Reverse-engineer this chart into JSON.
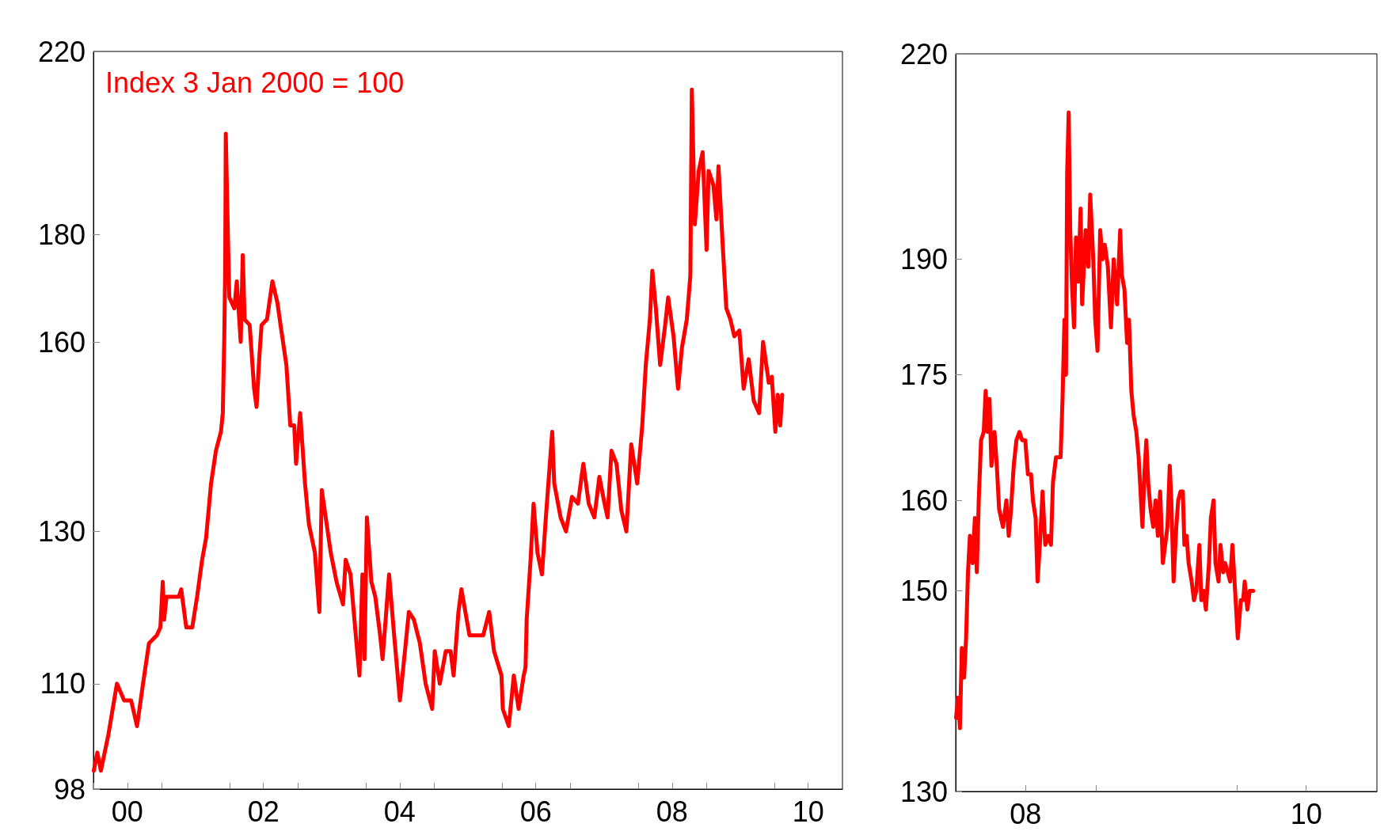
{
  "chart_data": [
    {
      "type": "line",
      "subtitle": "Index 3 Jan 2000 = 100",
      "log": true,
      "xlim": [
        "2000-01-01",
        "2011-01-01"
      ],
      "xticks": [
        {
          "value": "2000-01-01",
          "label": null
        },
        {
          "value": "2000-07-01",
          "label": "00"
        },
        {
          "value": "2001-01-01",
          "label": null
        },
        {
          "value": "2002-01-01",
          "label": null
        },
        {
          "value": "2002-07-01",
          "label": "02"
        },
        {
          "value": "2003-01-01",
          "label": null
        },
        {
          "value": "2004-01-01",
          "label": null
        },
        {
          "value": "2004-07-01",
          "label": "04"
        },
        {
          "value": "2005-01-01",
          "label": null
        },
        {
          "value": "2006-01-01",
          "label": null
        },
        {
          "value": "2006-07-01",
          "label": "06"
        },
        {
          "value": "2007-01-01",
          "label": null
        },
        {
          "value": "2008-01-01",
          "label": null
        },
        {
          "value": "2008-07-01",
          "label": "08"
        },
        {
          "value": "2009-01-01",
          "label": null
        },
        {
          "value": "2010-01-01",
          "label": null
        },
        {
          "value": "2010-07-01",
          "label": "10"
        }
      ],
      "ylim": [
        98,
        220
      ],
      "yticks": [
        98,
        110,
        130,
        160,
        180,
        220
      ],
      "series": [
        {
          "color": "#ff0000",
          "x": [
            "2000-01-03",
            "2000-01-22",
            "2000-02-10",
            "2000-03-21",
            "2000-05-06",
            "2000-06-14",
            "2000-07-21",
            "2000-08-22",
            "2000-09-23",
            "2000-10-25",
            "2000-12-06",
            "2000-12-25",
            "2001-01-07",
            "2001-01-14",
            "2001-01-27",
            "2001-02-28",
            "2001-04-03",
            "2001-04-16",
            "2001-05-13",
            "2001-06-14",
            "2001-07-10",
            "2001-08-06",
            "2001-08-27",
            "2001-09-23",
            "2001-10-19",
            "2001-11-15",
            "2001-11-25",
            "2001-12-03",
            "2001-12-08",
            "2001-12-11",
            "2001-12-21",
            "2001-12-30",
            "2002-01-26",
            "2002-02-08",
            "2002-03-01",
            "2002-03-12",
            "2002-03-22",
            "2002-04-18",
            "2002-05-12",
            "2002-05-25",
            "2002-06-08",
            "2002-06-21",
            "2002-07-20",
            "2002-08-18",
            "2002-09-14",
            "2002-10-05",
            "2002-11-01",
            "2002-11-22",
            "2002-12-13",
            "2002-12-23",
            "2003-01-14",
            "2003-02-09",
            "2003-03-02",
            "2003-04-03",
            "2003-04-27",
            "2003-05-10",
            "2003-05-31",
            "2003-06-27",
            "2003-07-28",
            "2003-09-01",
            "2003-09-15",
            "2003-10-11",
            "2003-11-12",
            "2003-11-28",
            "2003-12-14",
            "2003-12-25",
            "2004-01-07",
            "2004-01-31",
            "2004-02-21",
            "2004-03-18",
            "2004-03-31",
            "2004-05-05",
            "2004-06-01",
            "2004-07-02",
            "2004-07-29",
            "2004-08-19",
            "2004-09-15",
            "2004-10-17",
            "2004-11-17",
            "2004-12-22",
            "2005-01-05",
            "2005-02-01",
            "2005-03-05",
            "2005-03-31",
            "2005-04-16",
            "2005-05-12",
            "2005-05-28",
            "2005-07-10",
            "2005-08-10",
            "2005-09-22",
            "2005-10-24",
            "2005-11-19",
            "2005-12-29",
            "2006-01-05",
            "2006-02-06",
            "2006-03-05",
            "2006-03-31",
            "2006-04-27",
            "2006-05-07",
            "2006-05-13",
            "2006-06-03",
            "2006-06-19",
            "2006-07-10",
            "2006-08-03",
            "2006-08-24",
            "2006-09-27",
            "2006-10-08",
            "2006-11-11",
            "2006-12-10",
            "2007-01-11",
            "2007-02-12",
            "2007-03-13",
            "2007-04-11",
            "2007-05-11",
            "2007-06-07",
            "2007-07-05",
            "2007-07-21",
            "2007-08-11",
            "2007-09-07",
            "2007-10-03",
            "2007-10-30",
            "2007-11-25",
            "2007-12-27",
            "2008-01-23",
            "2008-02-11",
            "2008-03-04",
            "2008-03-17",
            "2008-04-05",
            "2008-04-28",
            "2008-05-25",
            "2008-06-10",
            "2008-07-09",
            "2008-08-02",
            "2008-08-23",
            "2008-09-18",
            "2008-10-07",
            "2008-10-15",
            "2008-10-31",
            "2008-11-21",
            "2008-12-12",
            "2009-01-02",
            "2009-01-13",
            "2009-02-08",
            "2009-02-24",
            "2009-03-07",
            "2009-03-31",
            "2009-04-18",
            "2009-05-10",
            "2009-05-31",
            "2009-06-27",
            "2009-07-20",
            "2009-08-16",
            "2009-09-12",
            "2009-10-11",
            "2009-11-01",
            "2009-12-02",
            "2009-12-18",
            "2010-01-06",
            "2010-01-19",
            "2010-02-01",
            "2010-02-12"
          ],
          "values": [
            100,
            102,
            100,
            104,
            110,
            108,
            108,
            105,
            110,
            115,
            116,
            117,
            123,
            118,
            121,
            121,
            121,
            122,
            117,
            117,
            121,
            126,
            129,
            137,
            142,
            145,
            148,
            161,
            174,
            201,
            182,
            168,
            166,
            171,
            160,
            176,
            164,
            163,
            152,
            149,
            157,
            163,
            164,
            171,
            167,
            162,
            156,
            146,
            146,
            140,
            148,
            137,
            131,
            127,
            119,
            136,
            132,
            127,
            123,
            120,
            126,
            124,
            115,
            111,
            124,
            113,
            132,
            123,
            121,
            116,
            113,
            124,
            116,
            108,
            114,
            119,
            118,
            115,
            110,
            107,
            114,
            110,
            114,
            114,
            111,
            119,
            122,
            116,
            116,
            116,
            119,
            114,
            111,
            107,
            105,
            111,
            107,
            111,
            112,
            118,
            126,
            134,
            127,
            124,
            132,
            145,
            137,
            132,
            130,
            135,
            134,
            140,
            134,
            132,
            138,
            134,
            132,
            142,
            140,
            133,
            130,
            143,
            137,
            146,
            156,
            164,
            173,
            166,
            156,
            163,
            168,
            161,
            152,
            159,
            164,
            172,
            211,
            182,
            193,
            197,
            177,
            193,
            190,
            183,
            194,
            177,
            166,
            164,
            161,
            162,
            152,
            157,
            150,
            148,
            160,
            153,
            154,
            145,
            151,
            146,
            151
          ]
        }
      ]
    },
    {
      "type": "line",
      "log": true,
      "xlim": [
        "2008-01-01",
        "2011-01-01"
      ],
      "xticks": [
        {
          "value": "2008-07-01",
          "label": "08"
        },
        {
          "value": "2009-01-01",
          "label": null
        },
        {
          "value": "2010-01-01",
          "label": null
        },
        {
          "value": "2010-07-01",
          "label": "10"
        }
      ],
      "ylim": [
        130,
        220
      ],
      "yticks": [
        130,
        150,
        160,
        175,
        190,
        220
      ],
      "series": [
        {
          "color": "#ff0000",
          "x": [
            "2008-01-02",
            "2008-01-07",
            "2008-01-12",
            "2008-01-17",
            "2008-01-23",
            "2008-01-28",
            "2008-02-02",
            "2008-02-07",
            "2008-02-14",
            "2008-02-20",
            "2008-02-25",
            "2008-03-01",
            "2008-03-07",
            "2008-03-14",
            "2008-03-19",
            "2008-03-24",
            "2008-03-29",
            "2008-04-03",
            "2008-04-11",
            "2008-04-17",
            "2008-04-23",
            "2008-05-03",
            "2008-05-12",
            "2008-05-18",
            "2008-05-24",
            "2008-05-31",
            "2008-06-07",
            "2008-06-15",
            "2008-06-22",
            "2008-06-30",
            "2008-07-07",
            "2008-07-15",
            "2008-07-20",
            "2008-07-27",
            "2008-08-01",
            "2008-08-07",
            "2008-08-14",
            "2008-08-21",
            "2008-08-29",
            "2008-09-05",
            "2008-09-10",
            "2008-09-18",
            "2008-09-24",
            "2008-09-30",
            "2008-10-05",
            "2008-10-10",
            "2008-10-14",
            "2008-10-17",
            "2008-10-21",
            "2008-10-25",
            "2008-10-30",
            "2008-11-04",
            "2008-11-09",
            "2008-11-15",
            "2008-11-21",
            "2008-11-25",
            "2008-12-04",
            "2008-12-11",
            "2008-12-16",
            "2008-12-24",
            "2008-12-29",
            "2009-01-04",
            "2009-01-11",
            "2009-01-17",
            "2009-01-23",
            "2009-01-31",
            "2009-02-08",
            "2009-02-15",
            "2009-02-24",
            "2009-03-04",
            "2009-03-08",
            "2009-03-15",
            "2009-03-22",
            "2009-03-27",
            "2009-04-02",
            "2009-04-08",
            "2009-04-15",
            "2009-04-21",
            "2009-05-01",
            "2009-05-06",
            "2009-05-11",
            "2009-05-16",
            "2009-05-22",
            "2009-05-29",
            "2009-06-04",
            "2009-06-10",
            "2009-06-16",
            "2009-06-23",
            "2009-07-05",
            "2009-07-11",
            "2009-07-15",
            "2009-07-21",
            "2009-07-28",
            "2009-08-02",
            "2009-08-08",
            "2009-08-14",
            "2009-08-18",
            "2009-08-24",
            "2009-08-29",
            "2009-09-06",
            "2009-09-12",
            "2009-09-18",
            "2009-09-26",
            "2009-10-01",
            "2009-10-07",
            "2009-10-13",
            "2009-10-21",
            "2009-10-26",
            "2009-11-02",
            "2009-11-07",
            "2009-11-15",
            "2009-11-20",
            "2009-11-27",
            "2009-12-02",
            "2009-12-09",
            "2009-12-15",
            "2009-12-21",
            "2009-12-28",
            "2010-01-04",
            "2010-01-12",
            "2010-01-18",
            "2010-01-22",
            "2010-01-29",
            "2010-02-04",
            "2010-02-13"
          ],
          "values": [
            137,
            139,
            136,
            144,
            141,
            145,
            152,
            156,
            153,
            158,
            152,
            160,
            167,
            168,
            173,
            168,
            172,
            164,
            168,
            164,
            159,
            157,
            160,
            156,
            159,
            164,
            167,
            168,
            167,
            167,
            163,
            163,
            160,
            158,
            151,
            155,
            161,
            155,
            156,
            155,
            162,
            165,
            165,
            165,
            172,
            182,
            175,
            202,
            211,
            194,
            186,
            181,
            193,
            187,
            197,
            184,
            194,
            189,
            199,
            190,
            182,
            178,
            194,
            190,
            192,
            189,
            181,
            190,
            184,
            194,
            188,
            186,
            179,
            182,
            173,
            170,
            168,
            165,
            157,
            163,
            167,
            162,
            159,
            157,
            160,
            156,
            161,
            153,
            157,
            164,
            160,
            151,
            157,
            160,
            161,
            161,
            155,
            156,
            153,
            151,
            149,
            150,
            155,
            149,
            150,
            148,
            153,
            158,
            160,
            153,
            151,
            155,
            152,
            153,
            152,
            151,
            155,
            150,
            145,
            149,
            149,
            151,
            148,
            150,
            150
          ]
        }
      ]
    }
  ]
}
